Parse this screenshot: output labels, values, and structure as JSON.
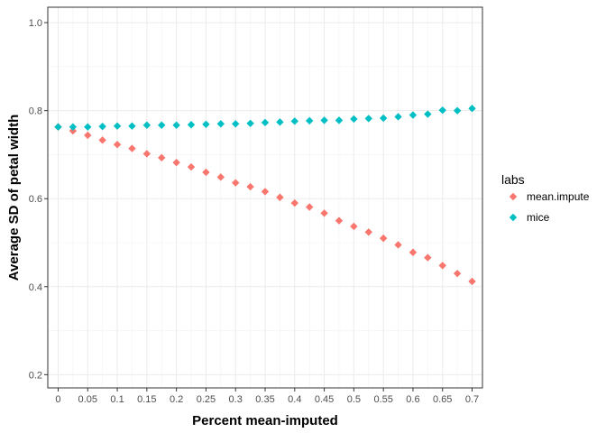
{
  "chart_data": {
    "type": "scatter",
    "title": "",
    "xlabel": "Percent mean-imputed",
    "ylabel": "Average SD of petal width",
    "xlim": [
      -0.0175,
      0.7175
    ],
    "ylim": [
      0.17,
      1.035
    ],
    "x_ticks": [
      0,
      0.05,
      0.1,
      0.15,
      0.2,
      0.25,
      0.3,
      0.35,
      0.4,
      0.45,
      0.5,
      0.55,
      0.6,
      0.65,
      0.7
    ],
    "x_tick_labels": [
      "0",
      "0.05",
      "0.1",
      "0.15",
      "0.2",
      "0.25",
      "0.3",
      "0.35",
      "0.4",
      "0.45",
      "0.5",
      "0.55",
      "0.6",
      "0.65",
      "0.7"
    ],
    "y_ticks": [
      0.2,
      0.4,
      0.6,
      0.8,
      1.0
    ],
    "y_tick_labels": [
      "0.2",
      "0.4",
      "0.6",
      "0.8",
      "1.0"
    ],
    "grid": true,
    "legend": {
      "title": "labs",
      "position": "right"
    },
    "series": [
      {
        "name": "mean.impute",
        "color": "#F8766D",
        "marker": "diamond",
        "x": [
          0,
          0.025,
          0.05,
          0.075,
          0.1,
          0.125,
          0.15,
          0.175,
          0.2,
          0.225,
          0.25,
          0.275,
          0.3,
          0.325,
          0.35,
          0.375,
          0.4,
          0.425,
          0.45,
          0.475,
          0.5,
          0.525,
          0.55,
          0.575,
          0.6,
          0.625,
          0.65,
          0.675,
          0.7
        ],
        "y": [
          0.763,
          0.754,
          0.744,
          0.733,
          0.723,
          0.714,
          0.702,
          0.693,
          0.682,
          0.672,
          0.66,
          0.649,
          0.636,
          0.627,
          0.616,
          0.603,
          0.59,
          0.581,
          0.567,
          0.55,
          0.537,
          0.524,
          0.51,
          0.495,
          0.478,
          0.466,
          0.448,
          0.43,
          0.412
        ]
      },
      {
        "name": "mice",
        "color": "#00BFC4",
        "marker": "diamond",
        "x": [
          0,
          0.025,
          0.05,
          0.075,
          0.1,
          0.125,
          0.15,
          0.175,
          0.2,
          0.225,
          0.25,
          0.275,
          0.3,
          0.325,
          0.35,
          0.375,
          0.4,
          0.425,
          0.45,
          0.475,
          0.5,
          0.525,
          0.55,
          0.575,
          0.6,
          0.625,
          0.65,
          0.675,
          0.7
        ],
        "y": [
          0.763,
          0.763,
          0.763,
          0.764,
          0.765,
          0.765,
          0.767,
          0.767,
          0.767,
          0.768,
          0.769,
          0.77,
          0.77,
          0.771,
          0.773,
          0.774,
          0.776,
          0.777,
          0.778,
          0.778,
          0.781,
          0.782,
          0.783,
          0.786,
          0.79,
          0.792,
          0.801,
          0.8,
          0.805
        ]
      }
    ]
  }
}
